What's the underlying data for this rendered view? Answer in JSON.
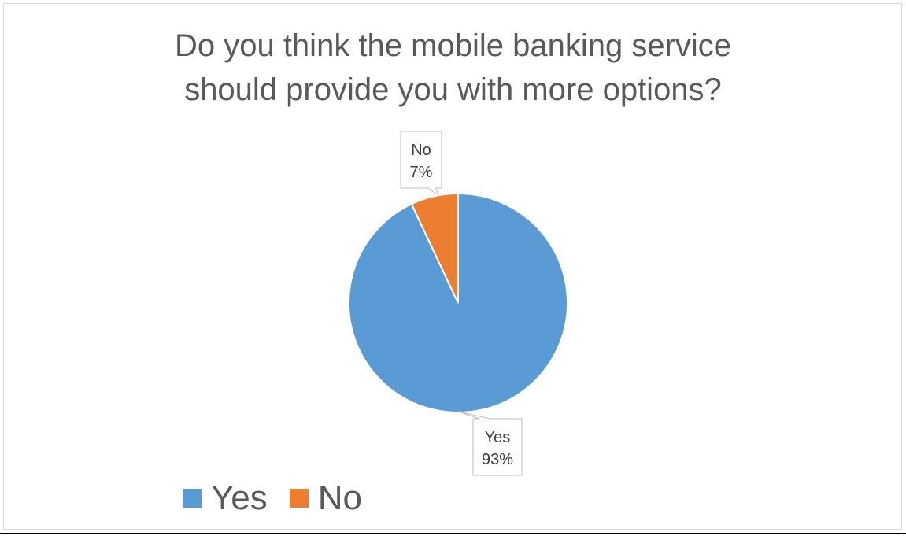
{
  "chart_data": {
    "type": "pie",
    "title_lines": [
      "Do you think the mobile banking service",
      "should provide you with more options?"
    ],
    "categories": [
      "Yes",
      "No"
    ],
    "values": [
      93,
      7
    ],
    "value_labels": [
      "93%",
      "7%"
    ],
    "colors": [
      "#5B9BD5",
      "#ED7D31"
    ],
    "legend_position": "bottom-left",
    "start_angle_deg": 0,
    "direction": "clockwise"
  }
}
